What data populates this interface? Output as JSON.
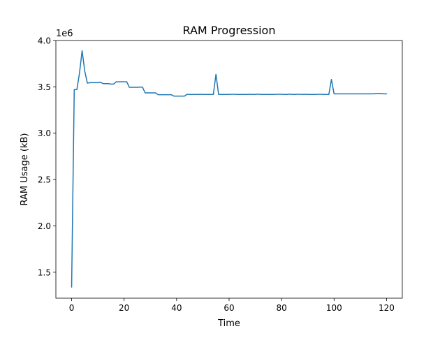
{
  "chart_data": {
    "type": "line",
    "title": "RAM Progression",
    "xlabel": "Time",
    "ylabel": "RAM Usage (kB)",
    "y_offset_label": "1e6",
    "xlim": [
      -6,
      126
    ],
    "ylim": [
      1.22,
      4.0
    ],
    "grid": false,
    "x_ticks": [
      0,
      20,
      40,
      60,
      80,
      100,
      120
    ],
    "x_tick_labels": [
      "0",
      "20",
      "40",
      "60",
      "80",
      "100",
      "120"
    ],
    "y_ticks": [
      1.5,
      2.0,
      2.5,
      3.0,
      3.5,
      4.0
    ],
    "y_tick_labels": [
      "1.5",
      "2.0",
      "2.5",
      "3.0",
      "3.5",
      "4.0"
    ],
    "line_color": "#1f77b4",
    "series": [
      {
        "x": [
          0,
          1,
          2,
          3,
          4,
          5,
          6,
          7,
          8,
          9,
          10,
          11,
          12,
          13,
          14,
          15,
          16,
          17,
          18,
          19,
          20,
          21,
          22,
          23,
          24,
          25,
          26,
          27,
          28,
          29,
          30,
          31,
          32,
          33,
          34,
          35,
          36,
          37,
          38,
          39,
          40,
          41,
          42,
          43,
          44,
          45,
          46,
          47,
          48,
          49,
          50,
          51,
          52,
          53,
          54,
          55,
          56,
          57,
          58,
          59,
          60,
          61,
          62,
          63,
          64,
          65,
          66,
          67,
          68,
          69,
          70,
          71,
          72,
          73,
          74,
          75,
          76,
          77,
          78,
          79,
          80,
          81,
          82,
          83,
          84,
          85,
          86,
          87,
          88,
          89,
          90,
          91,
          92,
          93,
          94,
          95,
          96,
          97,
          98,
          99,
          100,
          101,
          102,
          103,
          104,
          105,
          106,
          107,
          108,
          109,
          110,
          111,
          112,
          113,
          114,
          115,
          116,
          117,
          118,
          119,
          120
        ],
        "values": [
          1.34,
          3.47,
          3.47,
          3.65,
          3.89,
          3.67,
          3.54,
          3.545,
          3.545,
          3.545,
          3.545,
          3.55,
          3.535,
          3.535,
          3.535,
          3.53,
          3.53,
          3.555,
          3.555,
          3.555,
          3.555,
          3.555,
          3.495,
          3.495,
          3.495,
          3.495,
          3.497,
          3.497,
          3.435,
          3.435,
          3.435,
          3.435,
          3.435,
          3.415,
          3.415,
          3.415,
          3.415,
          3.415,
          3.415,
          3.4,
          3.4,
          3.4,
          3.4,
          3.4,
          3.42,
          3.418,
          3.418,
          3.418,
          3.418,
          3.42,
          3.418,
          3.418,
          3.418,
          3.418,
          3.418,
          3.635,
          3.418,
          3.418,
          3.418,
          3.418,
          3.418,
          3.42,
          3.42,
          3.418,
          3.418,
          3.418,
          3.418,
          3.418,
          3.42,
          3.418,
          3.418,
          3.422,
          3.418,
          3.418,
          3.418,
          3.418,
          3.418,
          3.418,
          3.42,
          3.42,
          3.42,
          3.418,
          3.418,
          3.422,
          3.418,
          3.418,
          3.42,
          3.42,
          3.418,
          3.42,
          3.418,
          3.418,
          3.418,
          3.418,
          3.42,
          3.42,
          3.418,
          3.418,
          3.418,
          3.58,
          3.425,
          3.425,
          3.425,
          3.425,
          3.425,
          3.425,
          3.425,
          3.425,
          3.425,
          3.425,
          3.425,
          3.425,
          3.425,
          3.425,
          3.425,
          3.425,
          3.428,
          3.428,
          3.428,
          3.425,
          3.425
        ]
      }
    ]
  }
}
